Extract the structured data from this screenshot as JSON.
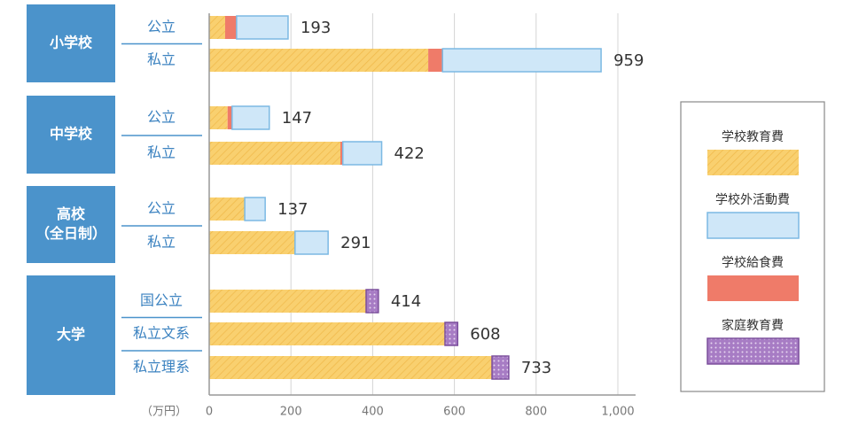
{
  "chart_data": {
    "type": "stacked-bar-h",
    "x_unit": "（万円）",
    "groups": [
      {
        "lines": [
          "小学校"
        ],
        "categories": [
          "公立",
          "私立"
        ]
      },
      {
        "lines": [
          "中学校"
        ],
        "categories": [
          "公立",
          "私立"
        ]
      },
      {
        "lines": [
          "高校",
          "（全日制）"
        ],
        "categories": [
          "公立",
          "私立"
        ]
      },
      {
        "lines": [
          "大学"
        ],
        "categories": [
          "国公立",
          "私立文系",
          "私立理系"
        ]
      }
    ],
    "series": [
      {
        "name": "学校教育費",
        "color": "#f9d06f",
        "values": [
          39,
          536,
          45,
          321,
          87,
          210,
          384,
          577,
          692
        ]
      },
      {
        "name": "学校給食費",
        "color": "#ef7b69",
        "values": [
          28,
          35,
          11,
          6,
          null,
          null,
          null,
          null,
          null
        ]
      },
      {
        "name": "学校外活動費",
        "color": "#cfe7f8",
        "values": [
          126,
          388,
          91,
          95,
          50,
          81,
          null,
          null,
          null
        ]
      },
      {
        "name": "家庭教育費",
        "color": "#a77cc4",
        "values": [
          null,
          null,
          null,
          null,
          null,
          null,
          30,
          31,
          41
        ]
      }
    ],
    "legend_order": [
      "学校教育費",
      "学校外活動費",
      "学校給食費",
      "家庭教育費"
    ],
    "totals": [
      193,
      959,
      147,
      422,
      137,
      291,
      414,
      608,
      733
    ],
    "xlim": [
      0,
      1000
    ],
    "xticks": [
      0,
      200,
      400,
      600,
      800,
      {
        "value": 1000,
        "label": "1,000"
      }
    ],
    "grid": true
  }
}
